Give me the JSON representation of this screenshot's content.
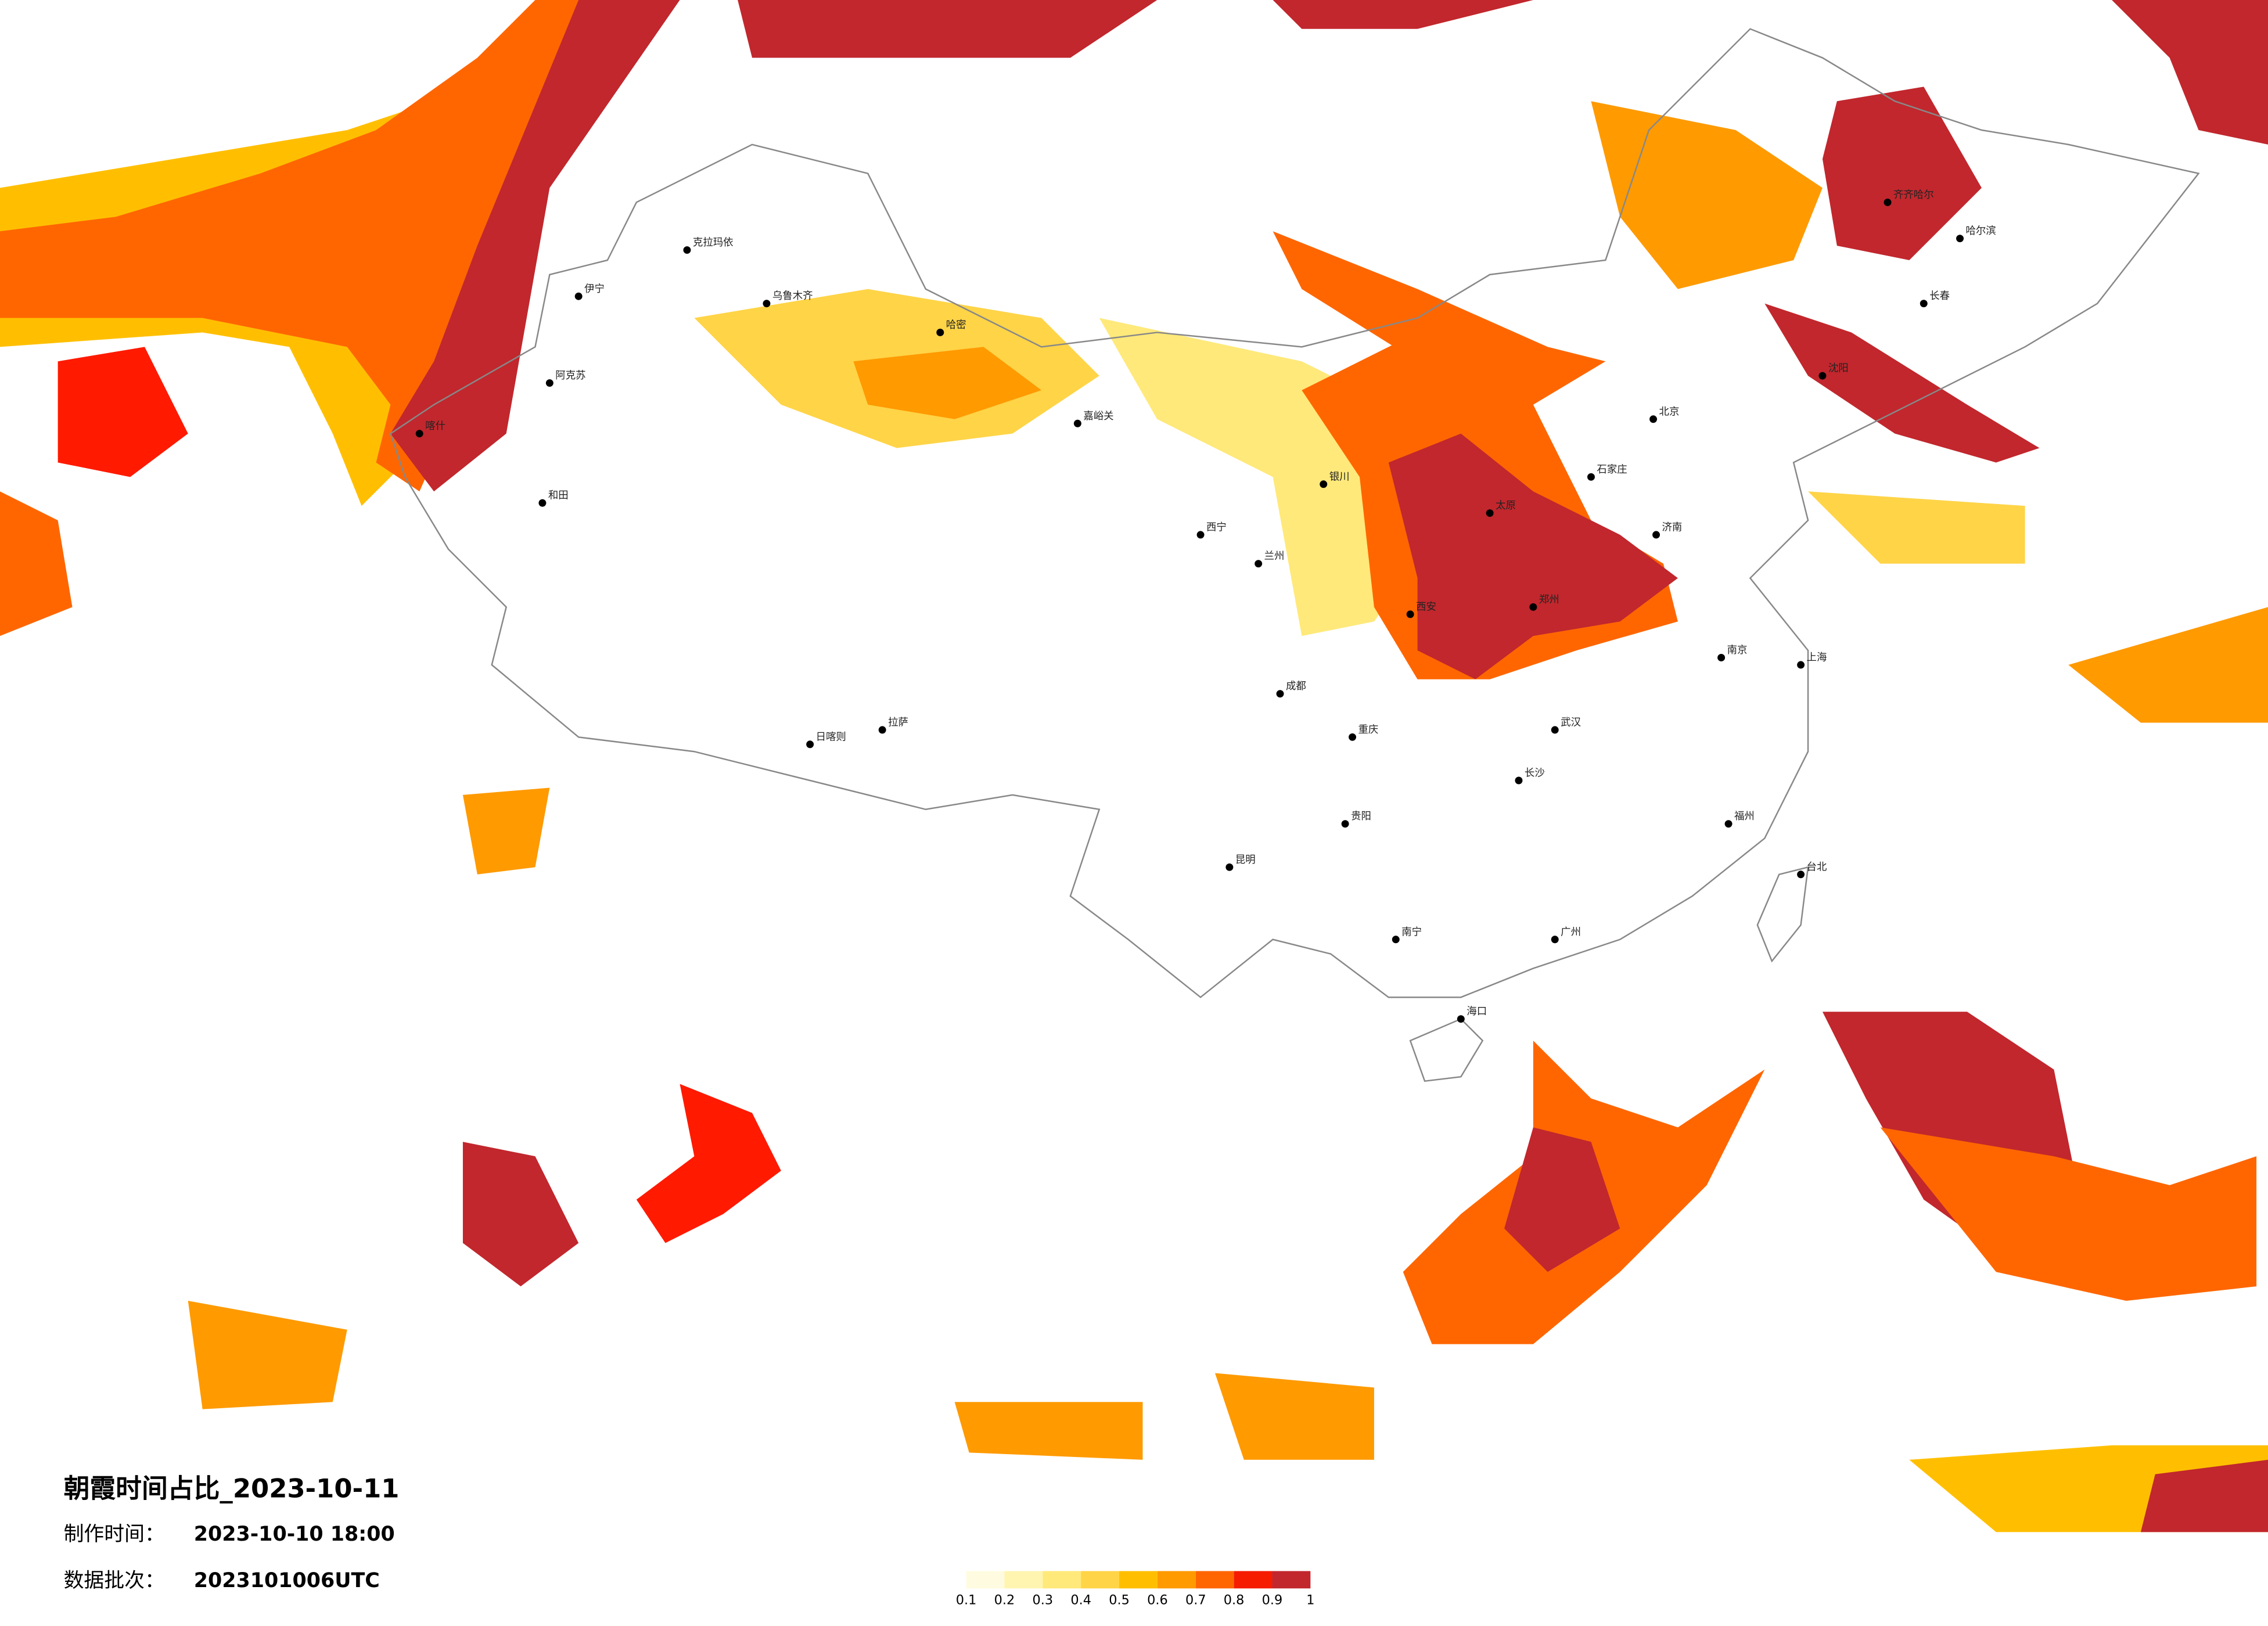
{
  "title": "朝霞时间占比_2023-10-11",
  "made_label": "制作时间：",
  "made_time": "2023-10-10 18:00",
  "batch_label": "数据批次：",
  "batch": "2023101006UTC",
  "legend": {
    "ticks": [
      0.1,
      0.2,
      0.3,
      0.4,
      0.5,
      0.6,
      0.7,
      0.8,
      0.9,
      1
    ],
    "colors": [
      "#fffbe0",
      "#fff5b0",
      "#ffe97a",
      "#ffd447",
      "#ffbf00",
      "#ff9a00",
      "#ff6600",
      "#f51c00",
      "#c1272d"
    ]
  },
  "cities": [
    "乌鲁木齐",
    "克拉玛依",
    "伊宁",
    "阿克苏",
    "和田",
    "喀什",
    "哈密",
    "嘉峪关",
    "拉萨",
    "日喀则",
    "西宁",
    "兰州",
    "银川",
    "成都",
    "重庆",
    "昆明",
    "贵阳",
    "南宁",
    "海口",
    "广州",
    "福州",
    "台北",
    "上海",
    "南京",
    "武汉",
    "长沙",
    "郑州",
    "济南",
    "沈阳",
    "长春",
    "哈尔滨",
    "齐齐哈尔",
    "石家庄",
    "太原",
    "西安",
    "北京"
  ]
}
